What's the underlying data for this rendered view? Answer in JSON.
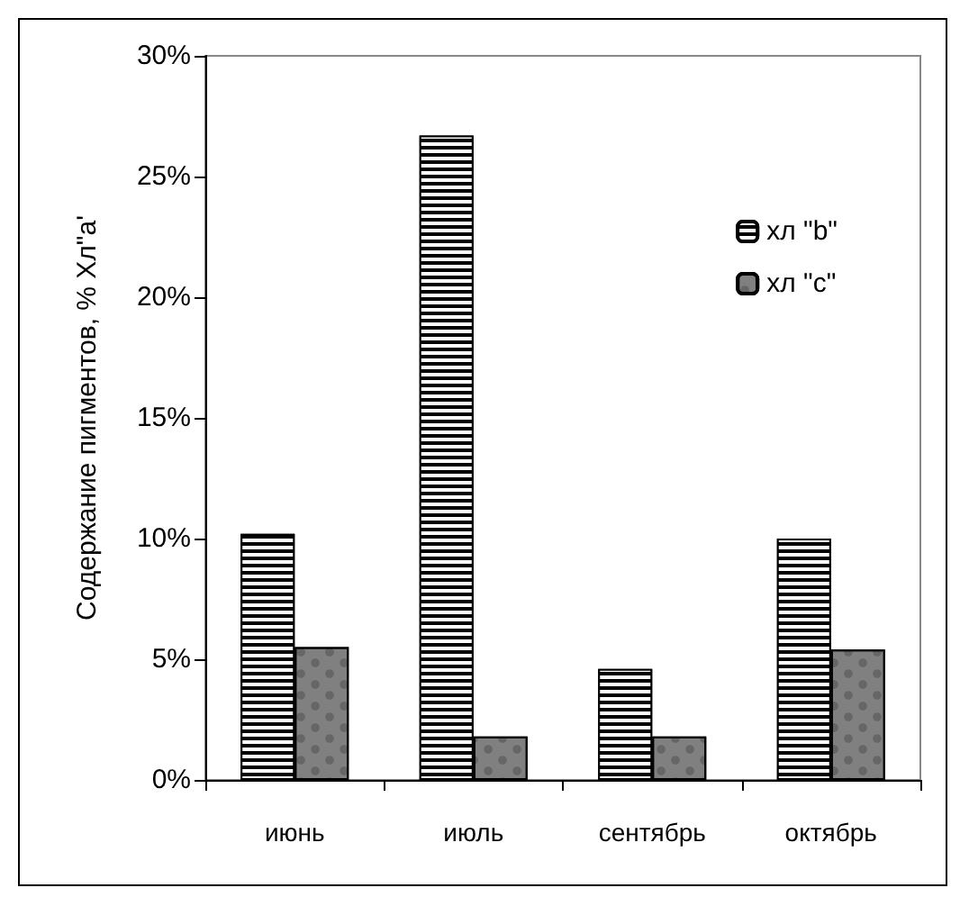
{
  "chart_data": {
    "type": "bar",
    "ylabel": "Содержание пигментов, % Хл\"а'",
    "categories": [
      "июнь",
      "июль",
      "сентябрь",
      "октябрь"
    ],
    "series": [
      {
        "name": "хл \"b\"",
        "color": "#000000",
        "values": [
          10.2,
          26.7,
          4.6,
          10.0
        ]
      },
      {
        "name": "хл \"c\"",
        "color": "#808080",
        "values": [
          5.5,
          1.8,
          1.8,
          5.4
        ]
      }
    ],
    "ylim": [
      0,
      30
    ],
    "yticks": [
      {
        "value": 0,
        "label": "0%"
      },
      {
        "value": 5,
        "label": "5%"
      },
      {
        "value": 10,
        "label": "10%"
      },
      {
        "value": 15,
        "label": "15%"
      },
      {
        "value": 20,
        "label": "20%"
      },
      {
        "value": 25,
        "label": "25%"
      },
      {
        "value": 30,
        "label": "30%"
      }
    ],
    "grid": false,
    "legend": "top right"
  }
}
